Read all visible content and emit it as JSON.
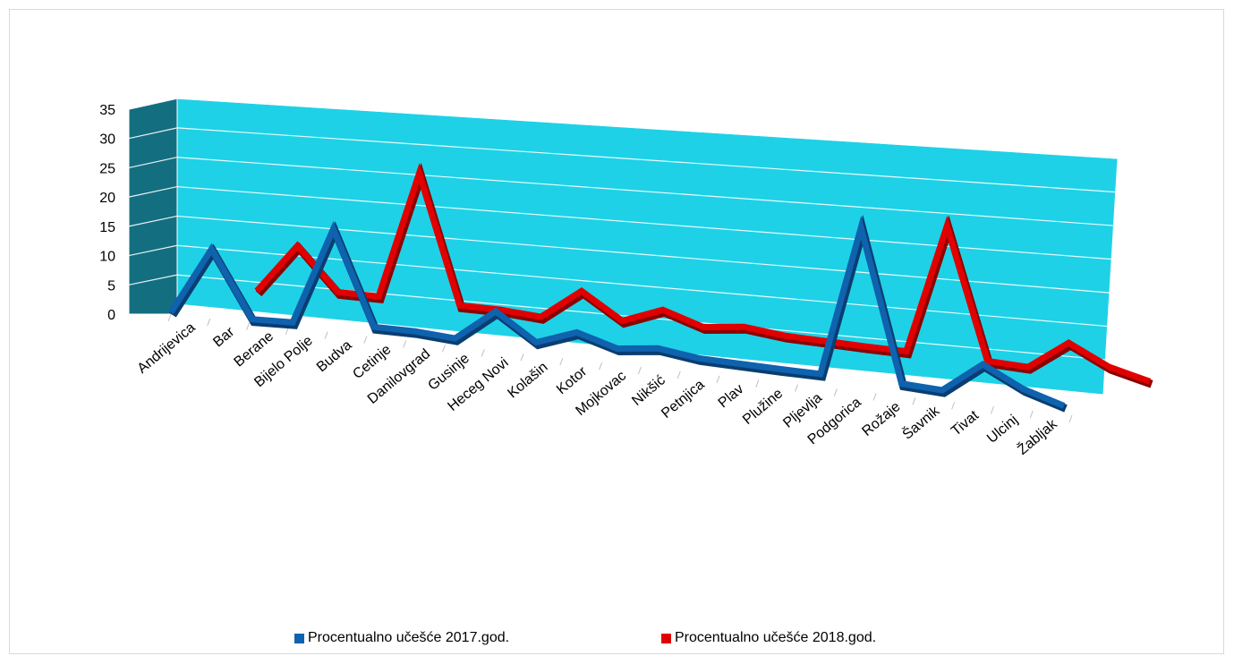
{
  "chart_data": {
    "type": "line",
    "categories": [
      "Andrijevica",
      "Bar",
      "Berane",
      "Bijelo Polje",
      "Budva",
      "Cetinje",
      "Danilovgrad",
      "Gusinje",
      "Heceg Novi",
      "Kolašin",
      "Kotor",
      "Mojkovac",
      "Nikšić",
      "Petnjica",
      "Plav",
      "Plužine",
      "Pljevlja",
      "Podgorica",
      "Rožaje",
      "Šavnik",
      "Tivat",
      "Ulcinj",
      "Žabljak"
    ],
    "series": [
      {
        "name": "Procentualno učešće 2017.god.",
        "color": "#0f62ad",
        "values": [
          0.3,
          12.2,
          0.6,
          0.8,
          18.0,
          1.5,
          1.5,
          1.0,
          6.5,
          1.8,
          4.3,
          2.2,
          3.0,
          2.0,
          1.8,
          1.6,
          1.5,
          28.0,
          1.3,
          0.9,
          6.2,
          2.6,
          0.4
        ]
      },
      {
        "name": "Procentualno učešće 2018.god.",
        "color": "#e00000",
        "values": [
          0.3,
          9.0,
          1.6,
          1.6,
          24.0,
          1.5,
          1.5,
          1.0,
          6.3,
          1.8,
          4.5,
          2.2,
          3.0,
          2.2,
          2.0,
          1.8,
          1.7,
          24.5,
          1.5,
          1.2,
          6.2,
          2.7,
          0.9
        ]
      }
    ],
    "yticks": [
      "0",
      "5",
      "10",
      "15",
      "20",
      "25",
      "30",
      "35"
    ],
    "ylim": [
      0,
      35
    ],
    "legend_position": "bottom",
    "grid": true
  }
}
